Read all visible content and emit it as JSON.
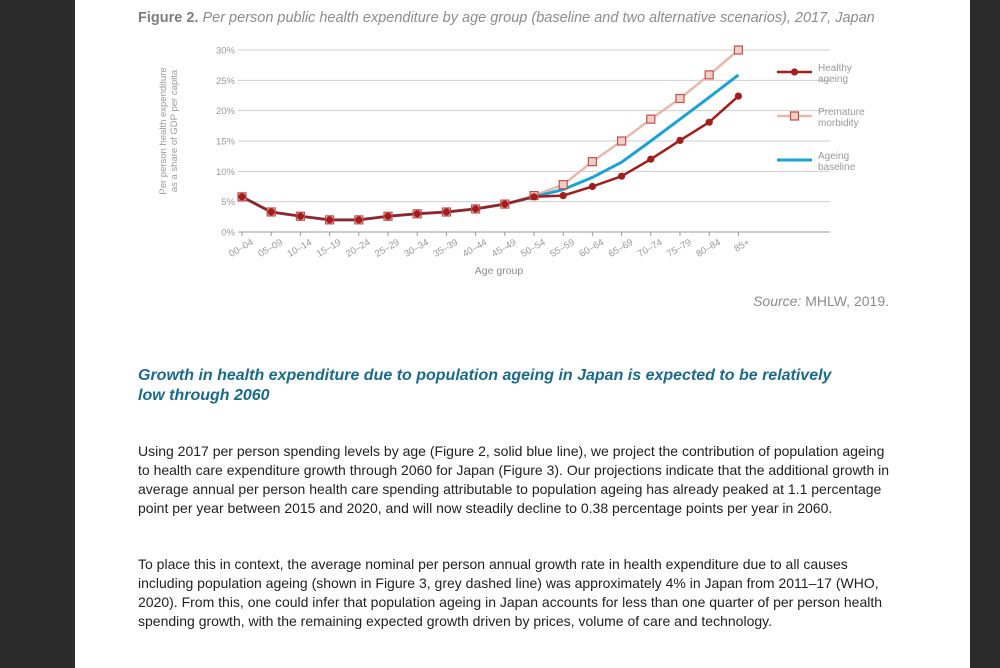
{
  "figure": {
    "label": "Figure 2.",
    "caption": "Per person public health expenditure by age group (baseline and two alternative scenarios), 2017, Japan",
    "source_label": "Source:",
    "source_text": "MHLW, 2019."
  },
  "chart_data": {
    "type": "line",
    "categories": [
      "00–04",
      "05–09",
      "10–14",
      "15–19",
      "20–24",
      "25–29",
      "30–34",
      "35–39",
      "40–44",
      "45–49",
      "50–54",
      "55–59",
      "60–64",
      "65–69",
      "70–74",
      "75–79",
      "80–84",
      "85+"
    ],
    "series": [
      {
        "name": "Healthy ageing",
        "label_lines": [
          "Healthy",
          "ageing"
        ],
        "color": "#a31d1d",
        "marker": "circle",
        "values": [
          5.8,
          3.3,
          2.6,
          2.0,
          2.0,
          2.6,
          3.0,
          3.3,
          3.8,
          4.6,
          5.8,
          6.0,
          7.5,
          9.2,
          12.0,
          15.1,
          18.1,
          22.4
        ]
      },
      {
        "name": "Premature morbidity",
        "label_lines": [
          "Premature",
          "morbidity"
        ],
        "color": "#e8b8aa",
        "marker": "square",
        "values": [
          5.8,
          3.3,
          2.6,
          2.0,
          2.0,
          2.6,
          3.0,
          3.3,
          3.8,
          4.6,
          6.0,
          7.8,
          11.6,
          15.0,
          18.6,
          22.0,
          25.9,
          30.0
        ]
      },
      {
        "name": "Ageing baseline",
        "label_lines": [
          "Ageing",
          "baseline"
        ],
        "color": "#1ba3d6",
        "marker": "none",
        "values": [
          5.8,
          3.3,
          2.6,
          2.0,
          2.0,
          2.6,
          3.0,
          3.3,
          3.8,
          4.6,
          5.8,
          7.0,
          9.0,
          11.5,
          15.0,
          18.6,
          22.2,
          25.9
        ]
      }
    ],
    "y_ticks": [
      "0%",
      "5%",
      "10%",
      "15%",
      "20%",
      "25%",
      "30%"
    ],
    "ylim": [
      0,
      30
    ],
    "ylabel_lines": [
      "Per person health expenditure",
      "as a share of GDP per capita"
    ],
    "xlabel": "Age group",
    "grid": true,
    "legend": "right"
  },
  "section": {
    "heading": "Growth in health expenditure due to population ageing in Japan is expected to be relatively low through 2060"
  },
  "paragraphs": {
    "p1": "Using 2017 per person spending levels by age (Figure 2, solid blue line), we project the contribution of population ageing to health care expenditure growth through 2060 for Japan (Figure 3). Our projections indicate that the additional growth in average annual per person health care spending attributable to population ageing has already peaked at 1.1 percentage point per year between 2015 and 2020, and will now steadily decline to 0.38 percentage points per year in 2060.",
    "p2": "To place this in context, the average nominal per person annual growth rate in health expenditure due to all causes including population ageing (shown in Figure 3, grey dashed line) was approximately 4% in Japan from 2011–17 (WHO, 2020). From this, one could infer that population ageing in Japan accounts for less than one quarter of per person health spending growth, with the remaining expected growth driven by prices, volume of care and technology."
  }
}
